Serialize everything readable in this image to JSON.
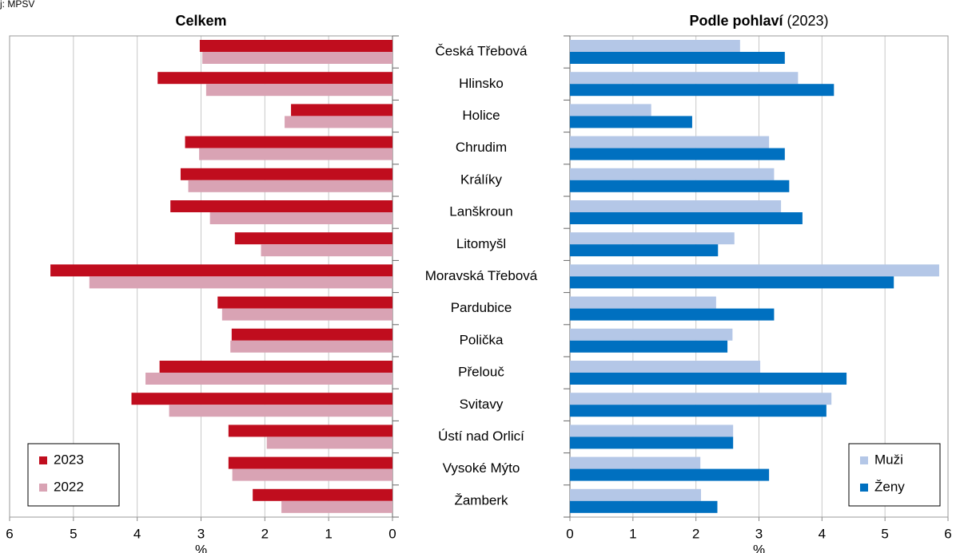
{
  "source": "j: MPSV",
  "chart_data": [
    {
      "type": "bar",
      "orientation": "horizontal",
      "title": "Celkem",
      "xlabel": "%",
      "categories": [
        "Česká Třebová",
        "Hlinsko",
        "Holice",
        "Chrudim",
        "Králíky",
        "Lanškroun",
        "Litomyšl",
        "Moravská Třebová",
        "Pardubice",
        "Polička",
        "Přelouč",
        "Svitavy",
        "Ústí nad Orlicí",
        "Vysoké Mýto",
        "Žamberk"
      ],
      "series": [
        {
          "name": "2023",
          "color": "#c00d1e",
          "values": [
            3.02,
            3.68,
            1.59,
            3.25,
            3.32,
            3.48,
            2.47,
            5.36,
            2.74,
            2.52,
            3.65,
            4.09,
            2.57,
            2.57,
            2.19
          ]
        },
        {
          "name": "2022",
          "color": "#d9a3b4",
          "values": [
            2.98,
            2.92,
            1.69,
            3.03,
            3.2,
            2.86,
            2.06,
            4.75,
            2.67,
            2.54,
            3.87,
            3.5,
            1.97,
            2.51,
            1.74
          ]
        }
      ],
      "xlim": [
        0,
        6
      ],
      "xticks": [
        0,
        1,
        2,
        3,
        4,
        5,
        6
      ],
      "xreversed": true,
      "grid": true,
      "legend": "lower left"
    },
    {
      "type": "bar",
      "orientation": "horizontal",
      "title": "Podle pohlaví",
      "title_note": "(2023)",
      "xlabel": "%",
      "series": [
        {
          "name": "Muži",
          "color": "#b4c7e7",
          "values": [
            2.7,
            3.62,
            1.29,
            3.16,
            3.24,
            3.35,
            2.61,
            5.86,
            2.32,
            2.58,
            3.02,
            4.15,
            2.59,
            2.07,
            2.08
          ]
        },
        {
          "name": "Ženy",
          "color": "#0070c0",
          "values": [
            3.41,
            4.19,
            1.94,
            3.41,
            3.48,
            3.69,
            2.35,
            5.14,
            3.24,
            2.5,
            4.39,
            4.07,
            2.59,
            3.16,
            2.34
          ]
        }
      ],
      "xlim": [
        0,
        6
      ],
      "xticks": [
        0,
        1,
        2,
        3,
        4,
        5,
        6
      ],
      "xreversed": false,
      "grid": true,
      "legend": "lower right"
    }
  ]
}
